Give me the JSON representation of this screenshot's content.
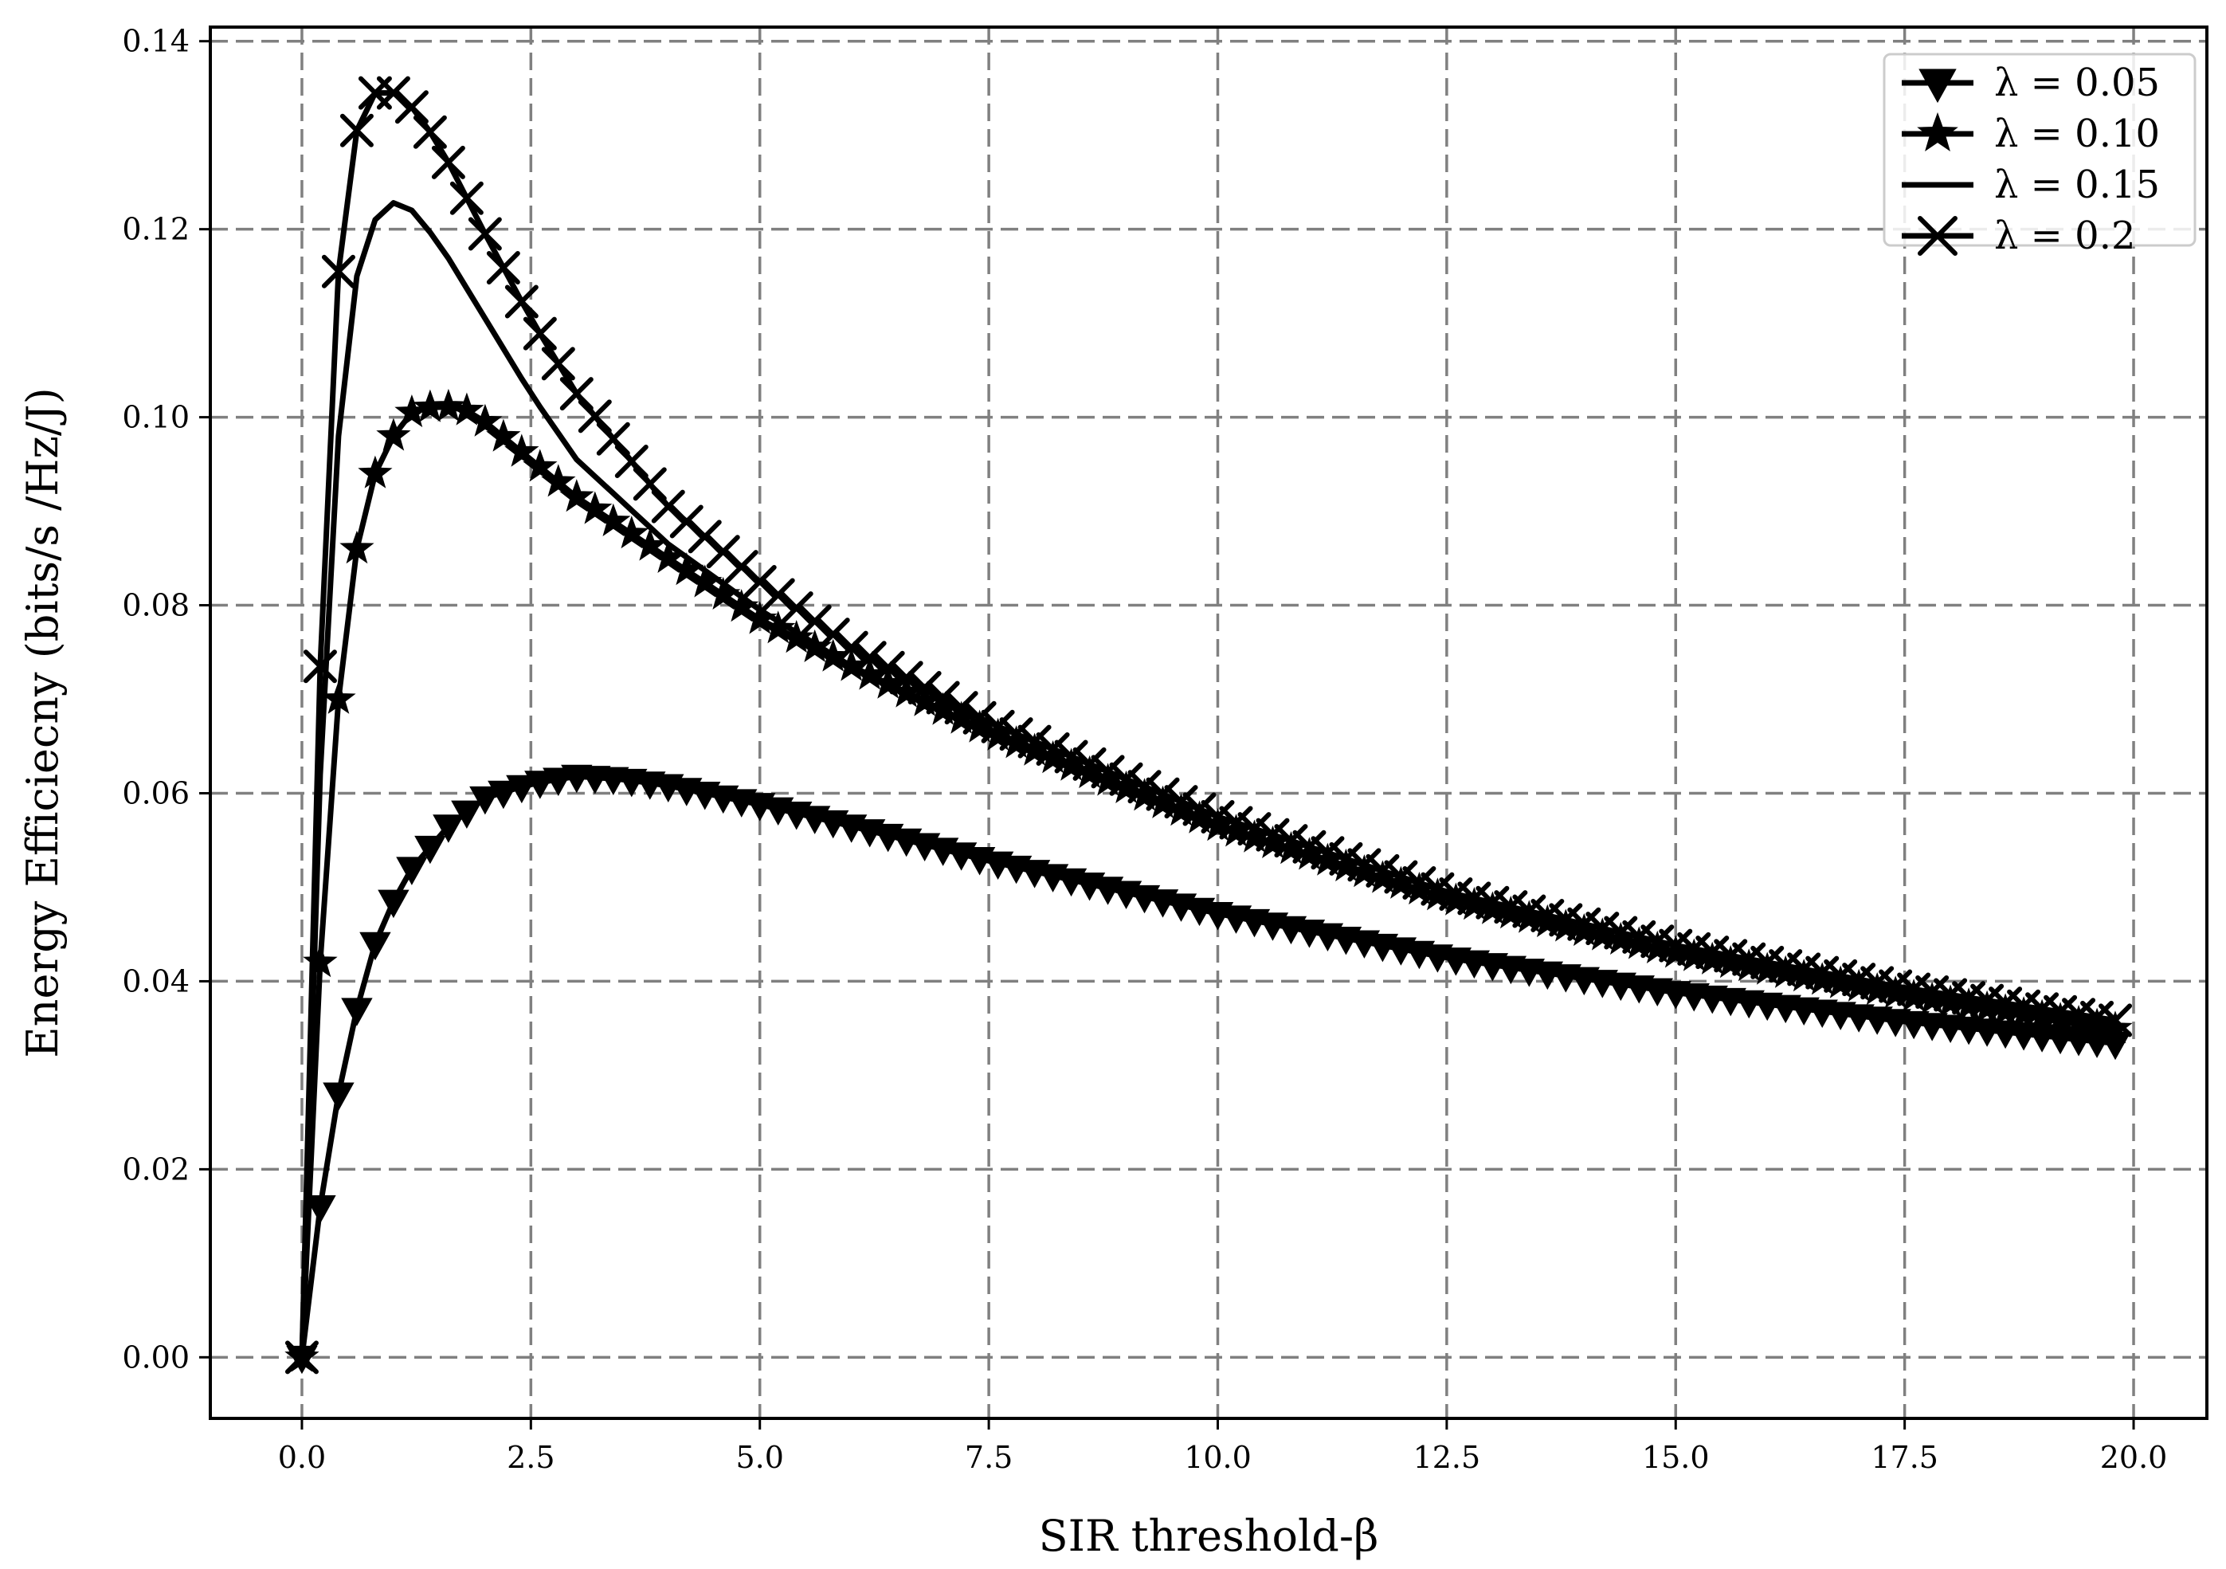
{
  "chart_data": {
    "type": "line",
    "title": "",
    "xlabel": "SIR threshold-β",
    "ylabel": "Energy Efficiecny (bits/s /Hz/J)",
    "xlim": [
      -1.0,
      20.8
    ],
    "ylim": [
      -0.0065,
      0.1415
    ],
    "xticks": [
      0.0,
      2.5,
      5.0,
      7.5,
      10.0,
      12.5,
      15.0,
      17.5,
      20.0
    ],
    "xtick_labels": [
      "0.0",
      "2.5",
      "5.0",
      "7.5",
      "10.0",
      "12.5",
      "15.0",
      "17.5",
      "20.0"
    ],
    "yticks": [
      0.0,
      0.02,
      0.04,
      0.06,
      0.08,
      0.1,
      0.12,
      0.14
    ],
    "ytick_labels": [
      "0.00",
      "0.02",
      "0.04",
      "0.06",
      "0.08",
      "0.10",
      "0.12",
      "0.14"
    ],
    "grid": true,
    "legend_position": "top-right",
    "x_range": [
      0.0,
      19.9
    ],
    "x_step": 0.2,
    "series": [
      {
        "name": "λ = 0.05",
        "marker": "triangle-down",
        "key_points": [
          [
            0.0,
            0.0
          ],
          [
            0.2,
            0.016
          ],
          [
            0.4,
            0.028
          ],
          [
            0.6,
            0.037
          ],
          [
            0.8,
            0.044
          ],
          [
            1.0,
            0.0485
          ],
          [
            1.2,
            0.052
          ],
          [
            1.6,
            0.0565
          ],
          [
            2.0,
            0.0595
          ],
          [
            2.5,
            0.061
          ],
          [
            3.0,
            0.0618
          ],
          [
            3.5,
            0.0615
          ],
          [
            4.0,
            0.0608
          ],
          [
            5.0,
            0.0588
          ],
          [
            6.0,
            0.0565
          ],
          [
            7.5,
            0.0528
          ],
          [
            10.0,
            0.0472
          ],
          [
            12.5,
            0.0425
          ],
          [
            15.0,
            0.0388
          ],
          [
            17.5,
            0.0357
          ],
          [
            19.9,
            0.0333
          ]
        ]
      },
      {
        "name": "λ = 0.10",
        "marker": "star",
        "key_points": [
          [
            0.0,
            0.0
          ],
          [
            0.2,
            0.042
          ],
          [
            0.4,
            0.07
          ],
          [
            0.6,
            0.086
          ],
          [
            0.8,
            0.094
          ],
          [
            1.0,
            0.098
          ],
          [
            1.2,
            0.1005
          ],
          [
            1.5,
            0.1013
          ],
          [
            1.8,
            0.1007
          ],
          [
            2.0,
            0.0995
          ],
          [
            2.5,
            0.0955
          ],
          [
            3.0,
            0.0915
          ],
          [
            4.0,
            0.085
          ],
          [
            5.0,
            0.0785
          ],
          [
            6.0,
            0.0735
          ],
          [
            7.5,
            0.0665
          ],
          [
            10.0,
            0.0565
          ],
          [
            12.5,
            0.0488
          ],
          [
            15.0,
            0.043
          ],
          [
            17.5,
            0.0385
          ],
          [
            19.9,
            0.0348
          ]
        ]
      },
      {
        "name": "λ = 0.15",
        "marker": "none",
        "key_points": [
          [
            0.0,
            0.0
          ],
          [
            0.2,
            0.062
          ],
          [
            0.4,
            0.098
          ],
          [
            0.6,
            0.115
          ],
          [
            0.8,
            0.121
          ],
          [
            1.0,
            0.1228
          ],
          [
            1.2,
            0.122
          ],
          [
            1.5,
            0.1185
          ],
          [
            2.0,
            0.1105
          ],
          [
            2.5,
            0.1025
          ],
          [
            3.0,
            0.0955
          ],
          [
            4.0,
            0.0865
          ],
          [
            5.0,
            0.0795
          ],
          [
            6.0,
            0.0735
          ],
          [
            7.5,
            0.0665
          ],
          [
            10.0,
            0.0565
          ],
          [
            12.5,
            0.0488
          ],
          [
            15.0,
            0.043
          ],
          [
            17.5,
            0.0385
          ],
          [
            19.9,
            0.0348
          ]
        ]
      },
      {
        "name": "λ = 0.2",
        "marker": "x",
        "key_points": [
          [
            0.0,
            0.0
          ],
          [
            0.2,
            0.0735
          ],
          [
            0.4,
            0.1155
          ],
          [
            0.6,
            0.1305
          ],
          [
            0.8,
            0.1345
          ],
          [
            0.9,
            0.135
          ],
          [
            1.0,
            0.1345
          ],
          [
            1.2,
            0.133
          ],
          [
            1.5,
            0.129
          ],
          [
            2.0,
            0.1195
          ],
          [
            2.5,
            0.1105
          ],
          [
            3.0,
            0.1025
          ],
          [
            4.0,
            0.0905
          ],
          [
            5.0,
            0.0825
          ],
          [
            6.0,
            0.0755
          ],
          [
            7.5,
            0.0675
          ],
          [
            10.0,
            0.0575
          ],
          [
            12.5,
            0.0495
          ],
          [
            15.0,
            0.0438
          ],
          [
            17.5,
            0.0393
          ],
          [
            19.9,
            0.0357
          ]
        ]
      }
    ]
  }
}
